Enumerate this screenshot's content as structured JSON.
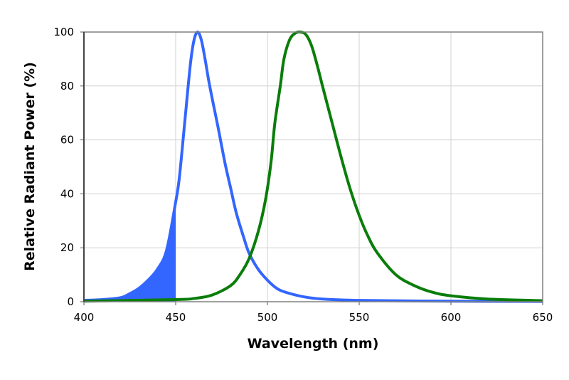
{
  "chart_data": {
    "type": "line",
    "title": "",
    "xlabel": "Wavelength (nm)",
    "ylabel": "Relative Radiant Power (%)",
    "xlim": [
      400,
      650
    ],
    "ylim": [
      0,
      100
    ],
    "xticks": [
      "400",
      "450",
      "500",
      "550",
      "600",
      "650"
    ],
    "yticks": [
      "0",
      "20",
      "40",
      "60",
      "80",
      "100"
    ],
    "grid": true,
    "series": [
      {
        "name": "Blue",
        "color": "#3366ff",
        "fill_range": [
          400,
          450
        ],
        "x": [
          400,
          410,
          420,
          425,
          430,
          435,
          440,
          445,
          450,
          452,
          455,
          458,
          460,
          462,
          464,
          466,
          468,
          470,
          473,
          477,
          480,
          483,
          487,
          490,
          495,
          500,
          505,
          510,
          520,
          530,
          550,
          600,
          650
        ],
        "y": [
          0.5,
          0.8,
          1.5,
          3,
          5,
          8,
          12,
          19,
          37,
          46,
          67,
          88,
          97,
          100,
          97,
          90,
          82,
          75,
          65,
          51,
          42,
          33,
          24,
          18,
          12,
          8,
          5,
          3.5,
          1.8,
          1,
          0.5,
          0.2,
          0.1
        ]
      },
      {
        "name": "Green",
        "color": "#0a7d0a",
        "x": [
          400,
          450,
          460,
          470,
          480,
          485,
          490,
          495,
          499,
          502,
          504,
          507,
          509,
          512,
          515,
          518,
          521,
          524,
          527,
          530,
          535,
          540,
          545,
          550,
          555,
          560,
          570,
          580,
          590,
          600,
          620,
          650
        ],
        "y": [
          0.2,
          0.8,
          1.2,
          2.5,
          6,
          10,
          16,
          26,
          38,
          52,
          66,
          80,
          90,
          97,
          99.5,
          100,
          99,
          95,
          88,
          80,
          67,
          54,
          42,
          32,
          24,
          18,
          10,
          6,
          3.5,
          2.2,
          1,
          0.4
        ]
      }
    ]
  }
}
